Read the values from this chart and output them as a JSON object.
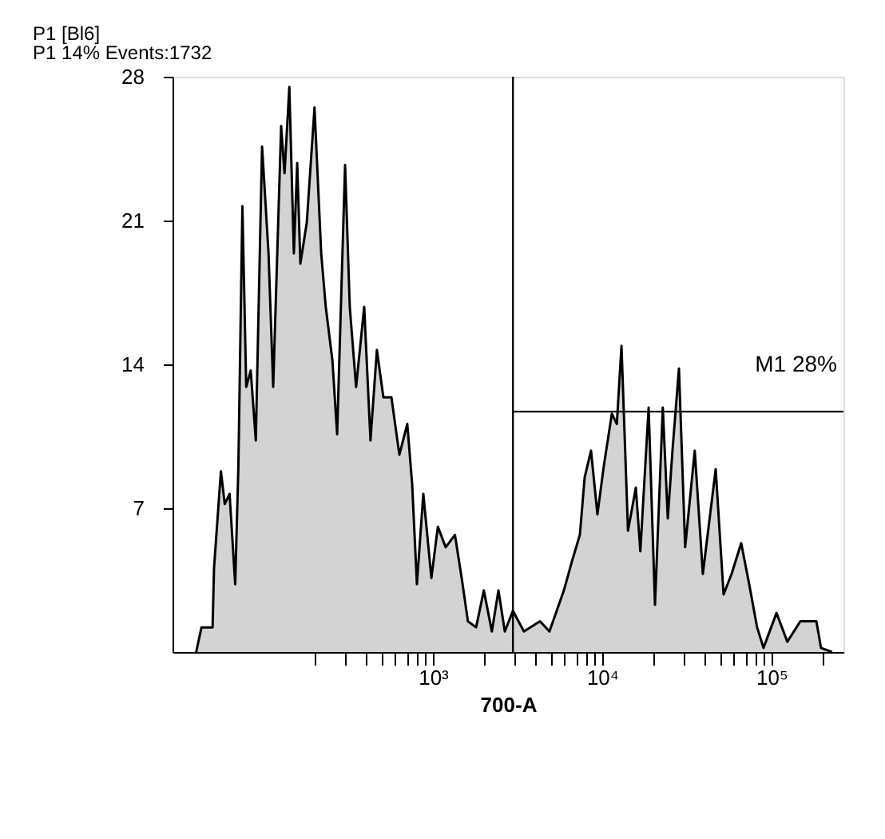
{
  "chart_data": {
    "type": "area",
    "title": "P1 [Bl6]",
    "subtitle": "P1  14% Events:1732",
    "xlabel": "700-A",
    "log": "x",
    "grid": false,
    "xlim": [
      29,
      266000
    ],
    "xticks": [
      {
        "value": 200,
        "label": null
      },
      {
        "value": 300,
        "label": null
      },
      {
        "value": 400,
        "label": null
      },
      {
        "value": 500,
        "label": null
      },
      {
        "value": 600,
        "label": null
      },
      {
        "value": 700,
        "label": null
      },
      {
        "value": 800,
        "label": null
      },
      {
        "value": 900,
        "label": null
      },
      {
        "value": 1000,
        "label": "10³"
      },
      {
        "value": 2000,
        "label": null
      },
      {
        "value": 3000,
        "label": null
      },
      {
        "value": 4000,
        "label": null
      },
      {
        "value": 5000,
        "label": null
      },
      {
        "value": 6000,
        "label": null
      },
      {
        "value": 7000,
        "label": null
      },
      {
        "value": 8000,
        "label": null
      },
      {
        "value": 9000,
        "label": null
      },
      {
        "value": 10000,
        "label": "10⁴"
      },
      {
        "value": 20000,
        "label": null
      },
      {
        "value": 30000,
        "label": null
      },
      {
        "value": 40000,
        "label": null
      },
      {
        "value": 50000,
        "label": null
      },
      {
        "value": 60000,
        "label": null
      },
      {
        "value": 70000,
        "label": null
      },
      {
        "value": 80000,
        "label": null
      },
      {
        "value": 90000,
        "label": null
      },
      {
        "value": 100000,
        "label": "10⁵"
      },
      {
        "value": 200000,
        "label": null
      }
    ],
    "ylim": [
      0,
      28
    ],
    "yticks": [
      7,
      14,
      21,
      28
    ],
    "ref_lines": [
      {
        "axis": "x",
        "value": 2970,
        "color": "#000000"
      },
      {
        "axis": "y",
        "value": 11.7,
        "label": "M1 28%",
        "color": "#000000"
      }
    ],
    "series": [
      {
        "color": "#c0c0c0",
        "x": [
          40,
          43,
          50,
          51,
          56,
          59,
          63,
          68,
          71,
          75,
          79,
          84,
          90,
          98,
          107,
          114,
          127,
          133,
          142,
          151,
          158,
          165,
          180,
          200,
          219,
          233,
          255,
          272,
          303,
          323,
          352,
          393,
          428,
          467,
          510,
          569,
          634,
          706,
          754,
          805,
          878,
          980,
          1070,
          1190,
          1350,
          1480,
          1610,
          1800,
          2000,
          2230,
          2440,
          2660,
          2970,
          3450,
          4290,
          4880,
          5940,
          6620,
          7380,
          7880,
          8590,
          9370,
          10200,
          11400,
          12200,
          13000,
          14200,
          15800,
          16800,
          18800,
          20500,
          22800,
          24400,
          26000,
          28400,
          30900,
          35200,
          39300,
          46800,
          52100,
          58100,
          66200,
          73800,
          82200,
          89700,
          107000,
          124000,
          148000,
          184000,
          196000,
          228000
        ],
        "values": [
          0,
          1.2,
          1.2,
          4.1,
          8.8,
          7.2,
          7.7,
          3.3,
          9.0,
          21.7,
          12.9,
          13.7,
          10.3,
          24.6,
          19.4,
          12.9,
          25.6,
          23.3,
          27.5,
          19.4,
          23.8,
          18.9,
          20.9,
          26.5,
          19.4,
          16.8,
          14.2,
          10.6,
          23.7,
          16.8,
          12.9,
          16.8,
          10.3,
          14.7,
          12.4,
          12.4,
          9.6,
          11.1,
          8.2,
          3.3,
          7.7,
          3.6,
          6.1,
          5.1,
          5.7,
          3.6,
          1.5,
          1.2,
          3.0,
          1.0,
          3.0,
          1.0,
          2.0,
          1.0,
          1.5,
          1.0,
          3.0,
          4.4,
          5.7,
          8.5,
          9.8,
          6.7,
          9.0,
          11.6,
          11.1,
          14.9,
          5.9,
          8.0,
          4.9,
          11.9,
          2.3,
          11.9,
          6.5,
          9.8,
          13.8,
          5.1,
          9.8,
          3.8,
          8.9,
          2.8,
          3.8,
          5.3,
          3.3,
          1.2,
          0.2,
          1.9,
          0.5,
          1.5,
          1.5,
          0.2,
          0
        ]
      }
    ]
  }
}
